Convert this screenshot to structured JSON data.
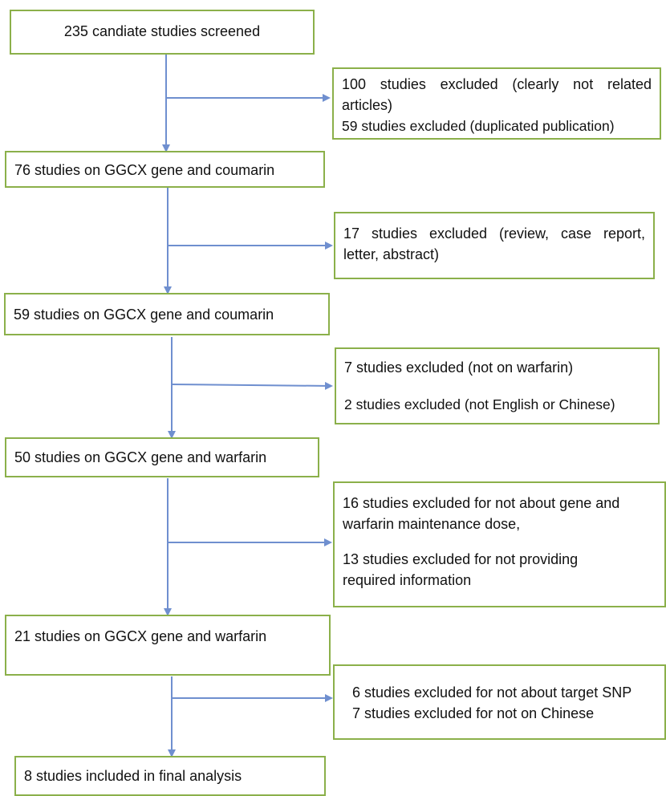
{
  "colors": {
    "box_border": "#8bb04a",
    "arrow": "#6f8fcf",
    "text": "#111111"
  },
  "steps": [
    {
      "label": "235 candiate studies screened"
    },
    {
      "label": "76 studies on GGCX gene and coumarin"
    },
    {
      "label": "59 studies on GGCX gene and coumarin"
    },
    {
      "label": "50 studies on GGCX gene and warfarin"
    },
    {
      "label": "21 studies on GGCX gene and warfarin"
    },
    {
      "label": "8 studies included in final analysis"
    }
  ],
  "exclusions": [
    {
      "lines": [
        "100 studies excluded (clearly not related",
        "articles)",
        "59 studies excluded (duplicated publication)"
      ]
    },
    {
      "lines": [
        "17 studies excluded (review, case report,",
        "letter, abstract)"
      ]
    },
    {
      "lines": [
        "7 studies excluded (not on warfarin)",
        "2 studies excluded (not English or Chinese)"
      ]
    },
    {
      "lines": [
        "16 studies excluded for not about gene and",
        "warfarin maintenance dose,",
        "13 studies excluded for not providing",
        "required information"
      ]
    },
    {
      "lines": [
        "6 studies excluded for not about target SNP",
        "7 studies excluded for not on Chinese"
      ]
    }
  ]
}
